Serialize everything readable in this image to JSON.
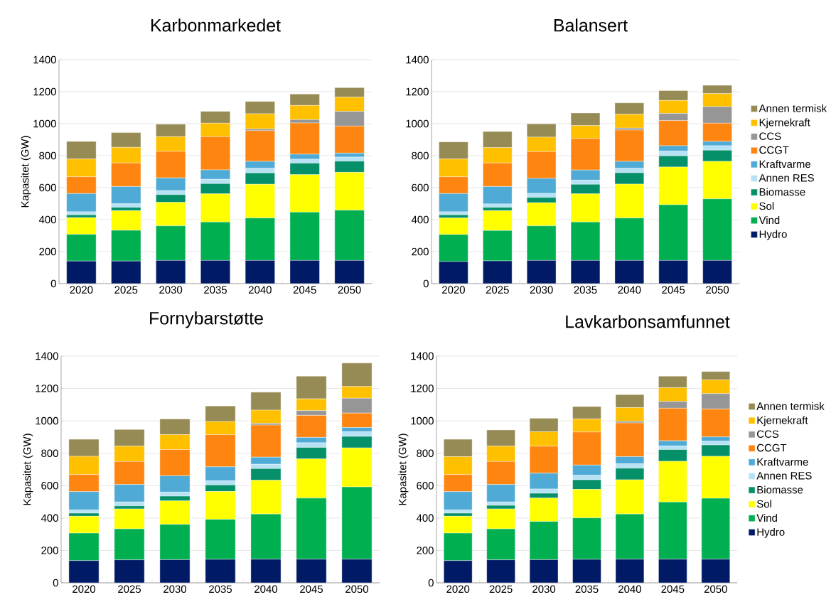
{
  "chart_data": [
    {
      "type": "bar",
      "stacked": true,
      "title": "Karbonmarkedet",
      "ylabel": "Kapasitet (GW)",
      "categories": [
        "2020",
        "2025",
        "2030",
        "2035",
        "2040",
        "2045",
        "2050"
      ],
      "ylim": [
        0,
        1400
      ],
      "yticks": [
        0,
        200,
        400,
        600,
        800,
        1000,
        1200,
        1400
      ],
      "grid": "y",
      "series": [
        {
          "color": "#001a66",
          "values": [
            141,
            141,
            145,
            145,
            145,
            145,
            145
          ]
        },
        {
          "color": "#00b050",
          "values": [
            167,
            192,
            216,
            240,
            265,
            302,
            314
          ]
        },
        {
          "color": "#ffff00",
          "values": [
            104,
            123,
            147,
            176,
            211,
            234,
            237
          ]
        },
        {
          "color": "#06906a",
          "values": [
            18,
            21,
            49,
            64,
            71,
            72,
            70
          ]
        },
        {
          "color": "#b7e1f5",
          "values": [
            19,
            22,
            24,
            27,
            29,
            25,
            25
          ]
        },
        {
          "color": "#4fabd5",
          "values": [
            114,
            108,
            80,
            59,
            43,
            31,
            25
          ]
        },
        {
          "color": "#ff8511",
          "values": [
            105,
            147,
            166,
            208,
            192,
            195,
            169
          ]
        },
        {
          "color": "#969696",
          "values": [
            0,
            0,
            0,
            0,
            11,
            21,
            92
          ]
        },
        {
          "color": "#ffc000",
          "values": [
            111,
            98,
            92,
            84,
            95,
            89,
            89
          ]
        },
        {
          "color": "#968b54",
          "values": [
            110,
            92,
            78,
            74,
            77,
            71,
            59
          ]
        }
      ]
    },
    {
      "type": "bar",
      "stacked": true,
      "title": "Balansert",
      "categories": [
        "2020",
        "2025",
        "2030",
        "2035",
        "2040",
        "2045",
        "2050"
      ],
      "ylim": [
        0,
        1400
      ],
      "yticks": [
        0,
        200,
        400,
        600,
        800,
        1000,
        1200,
        1400
      ],
      "grid": "y",
      "legend": "right",
      "series": [
        {
          "name": "Hydro",
          "color": "#001a66",
          "values": [
            138,
            142,
            145,
            145,
            145,
            145,
            145
          ]
        },
        {
          "name": "Vind",
          "color": "#00b050",
          "values": [
            169,
            190,
            216,
            240,
            265,
            348,
            385
          ]
        },
        {
          "name": "Sol",
          "color": "#ffff00",
          "values": [
            103,
            124,
            144,
            176,
            212,
            236,
            234
          ]
        },
        {
          "name": "Biomasse",
          "color": "#06906a",
          "values": [
            20,
            21,
            34,
            60,
            71,
            70,
            70
          ]
        },
        {
          "name": "Annen RES",
          "color": "#b7e1f5",
          "values": [
            19,
            21,
            25,
            26,
            28,
            29,
            28
          ]
        },
        {
          "name": "Kraftvarme",
          "color": "#4fabd5",
          "values": [
            114,
            109,
            94,
            63,
            43,
            34,
            27
          ]
        },
        {
          "name": "CCGT",
          "color": "#ff8511",
          "values": [
            105,
            147,
            167,
            197,
            196,
            157,
            114
          ]
        },
        {
          "name": "CCS",
          "color": "#969696",
          "values": [
            0,
            0,
            0,
            0,
            12,
            45,
            104
          ]
        },
        {
          "name": "Kjernekraft",
          "color": "#ffc000",
          "values": [
            111,
            96,
            91,
            81,
            87,
            81,
            81
          ]
        },
        {
          "name": "Annen termisk",
          "color": "#968b54",
          "values": [
            107,
            101,
            83,
            79,
            71,
            62,
            52
          ]
        }
      ]
    },
    {
      "type": "bar",
      "stacked": true,
      "title": "Fornybarstøtte",
      "ylabel": "Kapasitet (GW)",
      "categories": [
        "2020",
        "2025",
        "2030",
        "2035",
        "2040",
        "2045",
        "2050"
      ],
      "ylim": [
        0,
        1400
      ],
      "yticks": [
        0,
        200,
        400,
        600,
        800,
        1000,
        1200,
        1400
      ],
      "grid": "y",
      "series": [
        {
          "color": "#001a66",
          "values": [
            137,
            142,
            143,
            145,
            146,
            146,
            146
          ]
        },
        {
          "color": "#00b050",
          "values": [
            170,
            191,
            218,
            247,
            279,
            377,
            446
          ]
        },
        {
          "color": "#ffff00",
          "values": [
            104,
            123,
            145,
            172,
            208,
            242,
            241
          ]
        },
        {
          "color": "#06906a",
          "values": [
            19,
            19,
            29,
            40,
            72,
            71,
            71
          ]
        },
        {
          "color": "#b7e1f5",
          "values": [
            20,
            24,
            25,
            26,
            27,
            29,
            29
          ]
        },
        {
          "color": "#4fabd5",
          "values": [
            113,
            108,
            101,
            86,
            44,
            33,
            26
          ]
        },
        {
          "color": "#ff8511",
          "values": [
            105,
            142,
            162,
            199,
            198,
            136,
            89
          ]
        },
        {
          "color": "#969696",
          "values": [
            0,
            0,
            0,
            0,
            10,
            29,
            92
          ]
        },
        {
          "color": "#ffc000",
          "values": [
            113,
            95,
            92,
            81,
            82,
            73,
            72
          ]
        },
        {
          "color": "#968b54",
          "values": [
            105,
            103,
            97,
            96,
            111,
            140,
            145
          ]
        }
      ]
    },
    {
      "type": "bar",
      "stacked": true,
      "title": "Lavkarbonsamfunnet",
      "ylabel": "Kapasitet (GW)",
      "categories": [
        "2020",
        "2025",
        "2030",
        "2035",
        "2040",
        "2045",
        "2050"
      ],
      "ylim": [
        0,
        1400
      ],
      "yticks": [
        0,
        200,
        400,
        600,
        800,
        1000,
        1200,
        1400
      ],
      "grid": "y",
      "legend": "right",
      "series": [
        {
          "name": "Hydro",
          "color": "#001a66",
          "values": [
            137,
            142,
            143,
            145,
            146,
            146,
            146
          ]
        },
        {
          "name": "Vind",
          "color": "#00b050",
          "values": [
            170,
            191,
            236,
            256,
            279,
            353,
            376
          ]
        },
        {
          "name": "Sol",
          "color": "#ffff00",
          "values": [
            104,
            123,
            144,
            176,
            211,
            251,
            259
          ]
        },
        {
          "name": "Biomasse",
          "color": "#06906a",
          "values": [
            19,
            22,
            30,
            59,
            72,
            73,
            70
          ]
        },
        {
          "name": "Annen RES",
          "color": "#b7e1f5",
          "values": [
            20,
            21,
            26,
            28,
            27,
            22,
            23
          ]
        },
        {
          "name": "Kraftvarme",
          "color": "#4fabd5",
          "values": [
            113,
            108,
            98,
            63,
            44,
            32,
            27
          ]
        },
        {
          "name": "CCGT",
          "color": "#ff8511",
          "values": [
            105,
            142,
            167,
            204,
            208,
            201,
            172
          ]
        },
        {
          "name": "CCS",
          "color": "#969696",
          "values": [
            0,
            0,
            0,
            0,
            10,
            42,
            95
          ]
        },
        {
          "name": "Kjernekraft",
          "color": "#ffc000",
          "values": [
            111,
            95,
            89,
            81,
            85,
            85,
            85
          ]
        },
        {
          "name": "Annen termisk",
          "color": "#968b54",
          "values": [
            107,
            100,
            83,
            76,
            80,
            71,
            51
          ]
        }
      ]
    }
  ]
}
